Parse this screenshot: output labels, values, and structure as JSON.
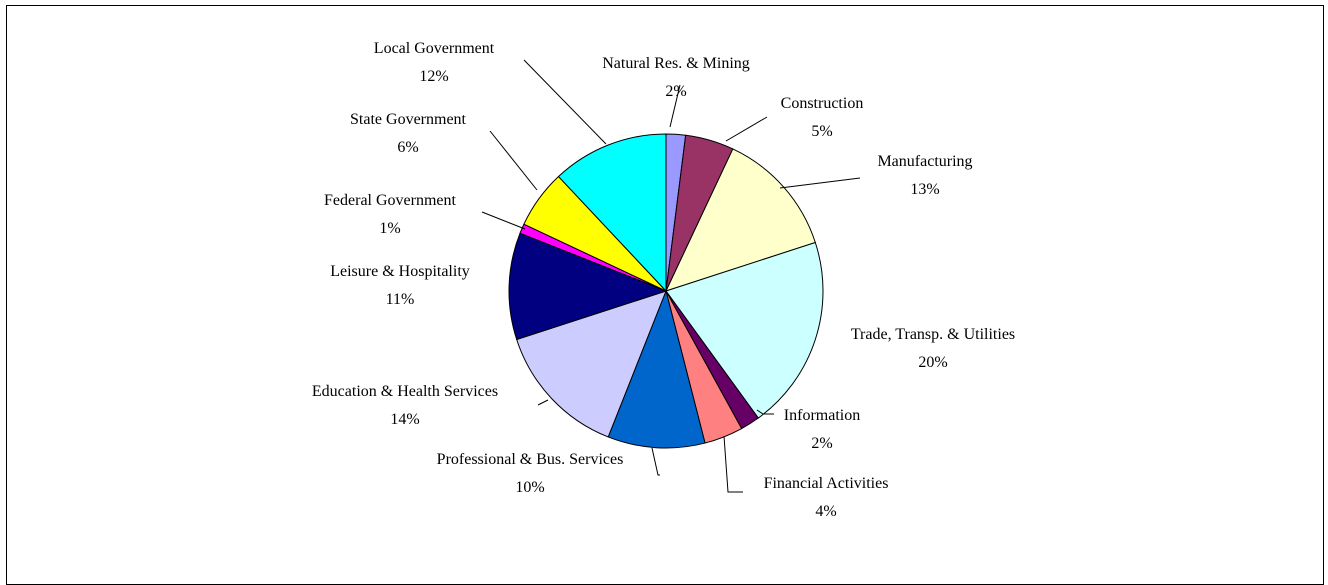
{
  "chart_data": {
    "type": "pie",
    "start_angle_deg": 0,
    "direction": "clockwise",
    "slices": [
      {
        "label": "Natural Res. & Mining",
        "value": 2,
        "pct_label": "2%",
        "color": "#9999FF"
      },
      {
        "label": "Construction",
        "value": 5,
        "pct_label": "5%",
        "color": "#993366"
      },
      {
        "label": "Manufacturing",
        "value": 13,
        "pct_label": "13%",
        "color": "#FFFFCC"
      },
      {
        "label": "Trade, Transp. & Utilities",
        "value": 20,
        "pct_label": "20%",
        "color": "#CCFFFF"
      },
      {
        "label": "Information",
        "value": 2,
        "pct_label": "2%",
        "color": "#660066"
      },
      {
        "label": "Financial Activities",
        "value": 4,
        "pct_label": "4%",
        "color": "#FF8080"
      },
      {
        "label": "Professional & Bus. Services",
        "value": 10,
        "pct_label": "10%",
        "color": "#0066CC"
      },
      {
        "label": "Education & Health Services",
        "value": 14,
        "pct_label": "14%",
        "color": "#CCCCFF"
      },
      {
        "label": "Leisure & Hospitality",
        "value": 11,
        "pct_label": "11%",
        "color": "#000080"
      },
      {
        "label": "Federal Government",
        "value": 1,
        "pct_label": "1%",
        "color": "#FF00FF"
      },
      {
        "label": "State Government",
        "value": 6,
        "pct_label": "6%",
        "color": "#FFFF00"
      },
      {
        "label": "Local Government",
        "value": 12,
        "pct_label": "12%",
        "color": "#00FFFF"
      }
    ],
    "title": "",
    "legend": "none"
  }
}
